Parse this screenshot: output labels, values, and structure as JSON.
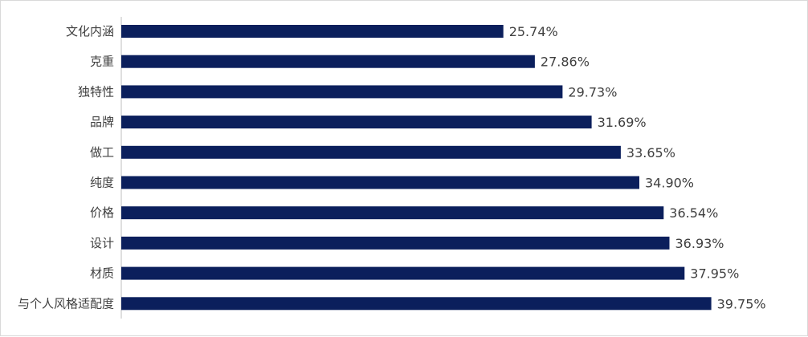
{
  "chart_data": {
    "type": "bar",
    "orientation": "horizontal",
    "categories": [
      "文化内涵",
      "克重",
      "独特性",
      "品牌",
      "做工",
      "纯度",
      "价格",
      "设计",
      "材质",
      "与个人风格适配度"
    ],
    "values": [
      25.74,
      27.86,
      29.73,
      31.69,
      33.65,
      34.9,
      36.54,
      36.93,
      37.95,
      39.75
    ],
    "value_labels": [
      "25.74%",
      "27.86%",
      "29.73%",
      "31.69%",
      "33.65%",
      "34.90%",
      "36.54%",
      "36.93%",
      "37.95%",
      "39.75%"
    ],
    "unit": "%",
    "xlim": [
      0,
      45
    ],
    "grid": false,
    "legend": "none",
    "bar_color": "#0b1f5c",
    "axis_color": "#bfbfbf",
    "text_color": "#404040"
  }
}
